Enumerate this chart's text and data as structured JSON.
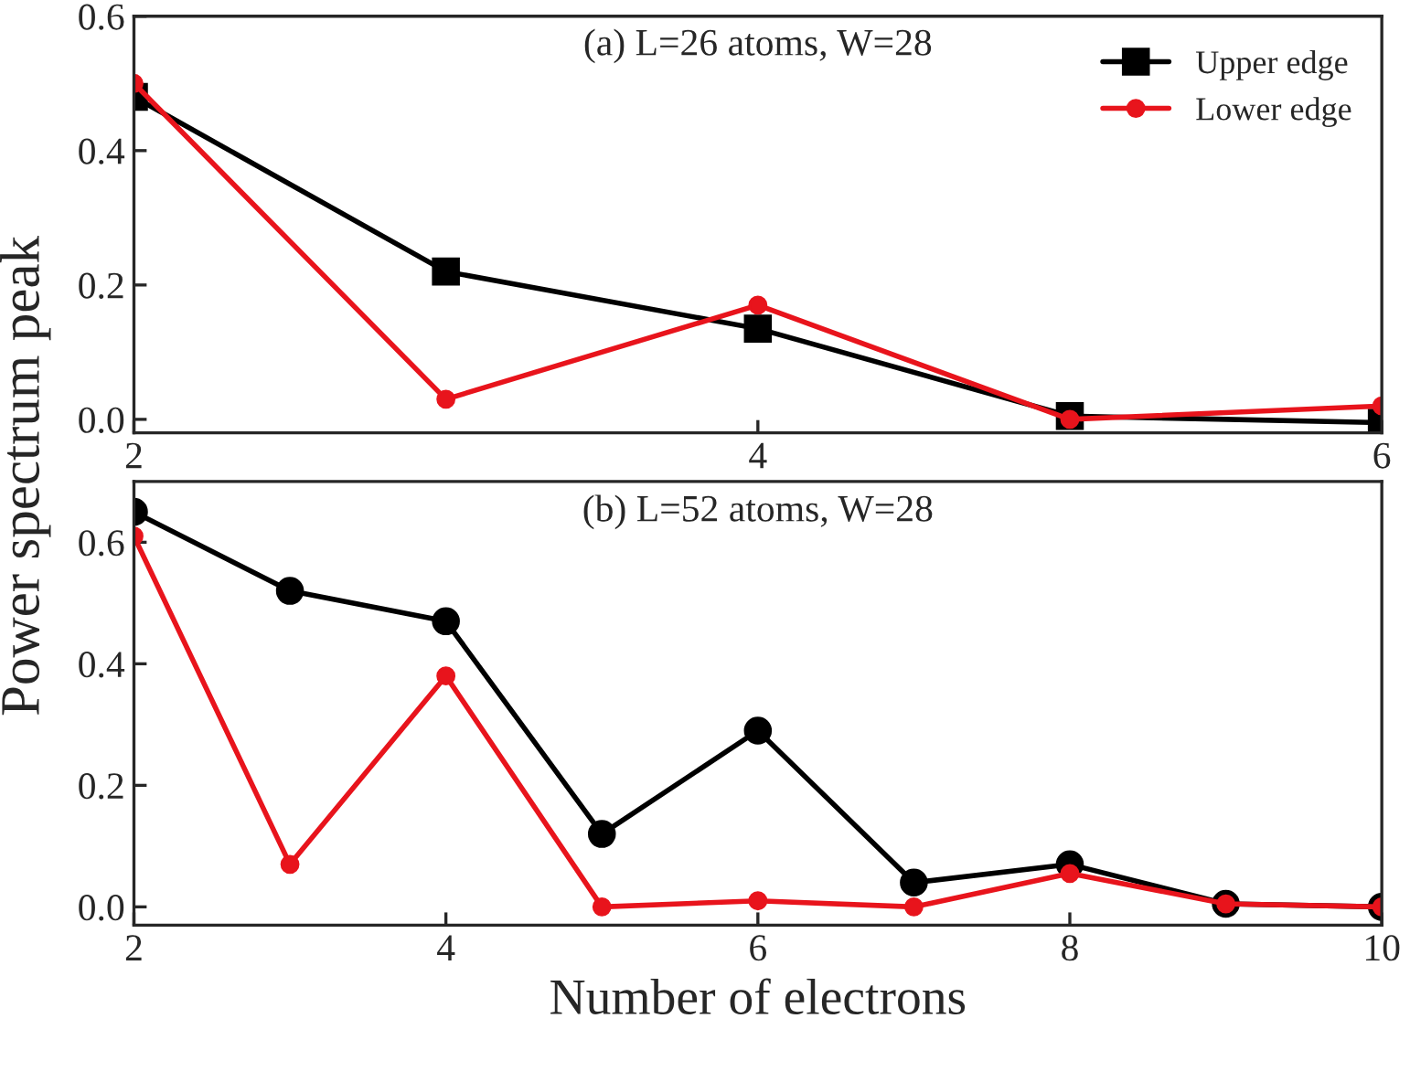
{
  "chart_data": [
    {
      "type": "line",
      "annotations": [
        "(a) L=26 atoms, W=28"
      ],
      "ylabel": "Power spectrum peak",
      "x": [
        2,
        3,
        4,
        5,
        6
      ],
      "series": [
        {
          "name": "Upper edge",
          "color": "#000000",
          "marker": "square",
          "values": [
            0.48,
            0.22,
            0.135,
            0.005,
            -0.005
          ]
        },
        {
          "name": "Lower edge",
          "color": "#e8141c",
          "marker": "circle",
          "values": [
            0.5,
            0.03,
            0.17,
            0.0,
            0.02
          ]
        }
      ],
      "xlim": [
        2,
        6
      ],
      "xticks": [
        2,
        4,
        6
      ],
      "ylim": [
        -0.02,
        0.6
      ],
      "yticks": [
        {
          "value": 0,
          "label": "0.0"
        },
        0.2,
        0.4,
        0.6
      ],
      "legend": "top right",
      "grid": false
    },
    {
      "type": "line",
      "annotations": [
        "(b) L=52 atoms, W=28"
      ],
      "xlabel": "Number of electrons",
      "x": [
        2,
        3,
        4,
        5,
        6,
        7,
        8,
        9,
        10
      ],
      "series": [
        {
          "color": "#000000",
          "marker": "circle",
          "values": [
            0.65,
            0.52,
            0.47,
            0.12,
            0.29,
            0.04,
            0.07,
            0.005,
            0.0
          ]
        },
        {
          "color": "#e8141c",
          "marker": "circle",
          "values": [
            0.61,
            0.07,
            0.38,
            0.0,
            0.01,
            0.0,
            0.055,
            0.005,
            0.0
          ]
        }
      ],
      "xlim": [
        2,
        10
      ],
      "xticks": [
        2,
        4,
        6,
        8,
        10
      ],
      "ylim": [
        -0.03,
        0.7
      ],
      "yticks": [
        {
          "value": 0,
          "label": "0.0"
        },
        0.2,
        0.4,
        0.6
      ],
      "grid": false
    }
  ]
}
